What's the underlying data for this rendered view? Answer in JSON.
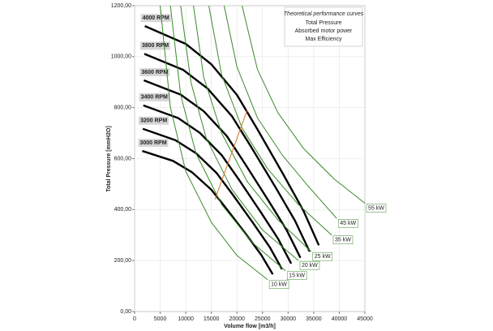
{
  "chart_data": {
    "type": "line",
    "xlabel": "Volume flow [m3/h]",
    "ylabel": "Total Pressure [mmH2O]",
    "xlim": [
      0,
      45000
    ],
    "ylim": [
      0,
      1200
    ],
    "xticks": [
      0,
      5000,
      10000,
      15000,
      20000,
      25000,
      30000,
      35000,
      40000,
      45000
    ],
    "yticks": [
      {
        "value": 0,
        "label": "0,00"
      },
      {
        "value": 200,
        "label": "200,00"
      },
      {
        "value": 400,
        "label": "400,00"
      },
      {
        "value": 600,
        "label": "600,00"
      },
      {
        "value": 800,
        "label": "800,00"
      },
      {
        "value": 1000,
        "label": "1000,00"
      },
      {
        "value": 1200,
        "label": "1200,00"
      }
    ],
    "grid": true,
    "legend": {
      "position": "top-right",
      "title": "Theoretical performance curves",
      "entries": [
        {
          "label": "Total Pressure",
          "color": "#000000"
        },
        {
          "label": "Absorbed motor power",
          "color": "#3a8a2a"
        },
        {
          "label": "Max Efficiency",
          "color": "#e07020"
        }
      ]
    },
    "series": [
      {
        "name": "4000 RPM",
        "color": "#000000",
        "label_position": "start",
        "x": [
          2000,
          10000,
          15000,
          20000,
          24000,
          29000,
          33000,
          36000
        ],
        "values": [
          1120,
          1050,
          970,
          850,
          715,
          540,
          395,
          260
        ]
      },
      {
        "name": "3800 RPM",
        "color": "#000000",
        "label_position": "start",
        "x": [
          1900,
          9500,
          14250,
          19000,
          22800,
          27550,
          31350,
          34200
        ],
        "values": [
          1011,
          948,
          875,
          767,
          645,
          487,
          356,
          235
        ]
      },
      {
        "name": "3600 RPM",
        "color": "#000000",
        "label_position": "start",
        "x": [
          1800,
          9000,
          13500,
          18000,
          21600,
          26100,
          29700,
          32400
        ],
        "values": [
          907,
          851,
          786,
          689,
          579,
          437,
          320,
          211
        ]
      },
      {
        "name": "3400 RPM",
        "color": "#000000",
        "label_position": "start",
        "x": [
          1700,
          8500,
          12750,
          17000,
          20400,
          24650,
          28050,
          30600
        ],
        "values": [
          809,
          759,
          701,
          614,
          517,
          390,
          285,
          188
        ]
      },
      {
        "name": "3200 RPM",
        "color": "#000000",
        "label_position": "start",
        "x": [
          1600,
          8000,
          12000,
          16000,
          19200,
          23200,
          26400,
          28800
        ],
        "values": [
          717,
          672,
          621,
          544,
          458,
          346,
          253,
          166
        ]
      },
      {
        "name": "3000 RPM",
        "color": "#000000",
        "label_position": "start",
        "x": [
          1500,
          7500,
          11250,
          15000,
          18000,
          21750,
          24750,
          27000
        ],
        "values": [
          630,
          591,
          546,
          478,
          402,
          304,
          222,
          146
        ]
      },
      {
        "name": "10 kW",
        "color": "#3a8a2a",
        "label_position": "end",
        "x": [
          5000,
          7000,
          10000,
          15000,
          20000,
          26000
        ],
        "values": [
          1200,
          800,
          550,
          350,
          220,
          125
        ]
      },
      {
        "name": "15 kW",
        "color": "#3a8a2a",
        "label_position": "end",
        "x": [
          7000,
          9000,
          12000,
          17000,
          23000,
          29500
        ],
        "values": [
          1200,
          850,
          620,
          420,
          270,
          160
        ]
      },
      {
        "name": "20 kW",
        "color": "#3a8a2a",
        "label_position": "end",
        "x": [
          9000,
          11000,
          14000,
          19000,
          25000,
          32000
        ],
        "values": [
          1200,
          900,
          680,
          480,
          320,
          200
        ]
      },
      {
        "name": "25 kW",
        "color": "#3a8a2a",
        "label_position": "end",
        "x": [
          11500,
          13500,
          17000,
          22000,
          28000,
          34500
        ],
        "values": [
          1200,
          920,
          700,
          510,
          360,
          235
        ]
      },
      {
        "name": "35 kW",
        "color": "#3a8a2a",
        "label_position": "end",
        "x": [
          14500,
          17000,
          21000,
          26000,
          32000,
          38500
        ],
        "values": [
          1200,
          930,
          720,
          560,
          420,
          300
        ]
      },
      {
        "name": "45 kW",
        "color": "#3a8a2a",
        "label_position": "end",
        "x": [
          17500,
          20000,
          24000,
          29000,
          34000,
          39500
        ],
        "values": [
          1200,
          960,
          760,
          610,
          490,
          365
        ]
      },
      {
        "name": "55 kW",
        "color": "#3a8a2a",
        "label_position": "end",
        "x": [
          21000,
          24000,
          28000,
          33000,
          39000,
          45000
        ],
        "values": [
          1200,
          950,
          780,
          640,
          520,
          425
        ]
      },
      {
        "color": "#e07020",
        "x": [
          15700,
          22000
        ],
        "values": [
          440,
          790
        ]
      }
    ]
  }
}
